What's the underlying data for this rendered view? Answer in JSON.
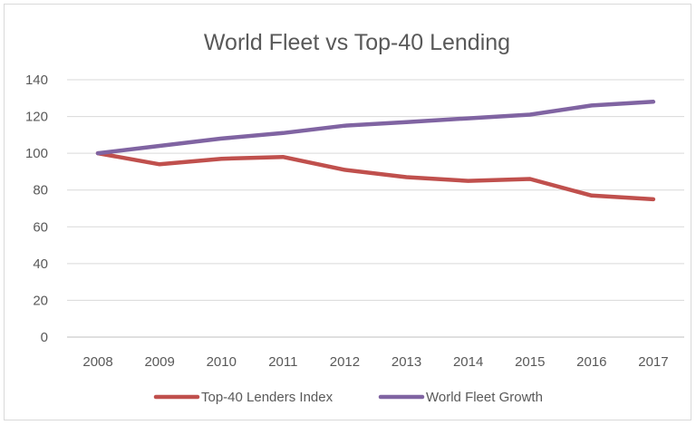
{
  "chart_data": {
    "type": "line",
    "title": "World Fleet vs Top-40 Lending",
    "xlabel": "",
    "ylabel": "",
    "categories": [
      "2008",
      "2009",
      "2010",
      "2011",
      "2012",
      "2013",
      "2014",
      "2015",
      "2016",
      "2017"
    ],
    "ylim": [
      0,
      140
    ],
    "yticks": [
      0,
      20,
      40,
      60,
      80,
      100,
      120,
      140
    ],
    "grid": true,
    "legend": "bottom",
    "series": [
      {
        "name": "Top-40 Lenders Index",
        "color": "#c0504d",
        "values": [
          100,
          94,
          97,
          98,
          91,
          87,
          85,
          86,
          77,
          75
        ]
      },
      {
        "name": "World Fleet Growth",
        "color": "#8064a2",
        "values": [
          100,
          104,
          108,
          111,
          115,
          117,
          119,
          121,
          126,
          128
        ]
      }
    ]
  }
}
